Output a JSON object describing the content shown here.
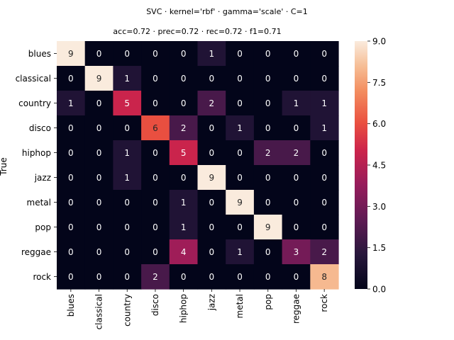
{
  "chart_data": {
    "type": "heatmap",
    "title": "SVC · kernel='rbf' · gamma='scale' · C=1",
    "subtitle": "acc=0.72 · prec=0.72 · rec=0.72 · f1=0.71",
    "xlabel": "",
    "ylabel": "True",
    "x_categories": [
      "blues",
      "classical",
      "country",
      "disco",
      "hiphop",
      "jazz",
      "metal",
      "pop",
      "reggae",
      "rock"
    ],
    "y_categories": [
      "blues",
      "classical",
      "country",
      "disco",
      "hiphop",
      "jazz",
      "metal",
      "pop",
      "reggae",
      "rock"
    ],
    "matrix": [
      [
        9,
        0,
        0,
        0,
        0,
        1,
        0,
        0,
        0,
        0
      ],
      [
        0,
        9,
        1,
        0,
        0,
        0,
        0,
        0,
        0,
        0
      ],
      [
        1,
        0,
        5,
        0,
        0,
        2,
        0,
        0,
        1,
        1
      ],
      [
        0,
        0,
        0,
        6,
        2,
        0,
        1,
        0,
        0,
        1
      ],
      [
        0,
        0,
        1,
        0,
        5,
        0,
        0,
        2,
        2,
        0
      ],
      [
        0,
        0,
        1,
        0,
        0,
        9,
        0,
        0,
        0,
        0
      ],
      [
        0,
        0,
        0,
        0,
        1,
        0,
        9,
        0,
        0,
        0
      ],
      [
        0,
        0,
        0,
        0,
        1,
        0,
        0,
        9,
        0,
        0
      ],
      [
        0,
        0,
        0,
        0,
        4,
        0,
        1,
        0,
        3,
        2
      ],
      [
        0,
        0,
        0,
        2,
        0,
        0,
        0,
        0,
        0,
        8
      ]
    ],
    "vmin": 0,
    "vmax": 9,
    "colorbar_ticks": [
      "0.0",
      "1.5",
      "3.0",
      "4.5",
      "6.0",
      "7.5",
      "9.0"
    ],
    "colormap": "rocket",
    "annotate": true
  }
}
